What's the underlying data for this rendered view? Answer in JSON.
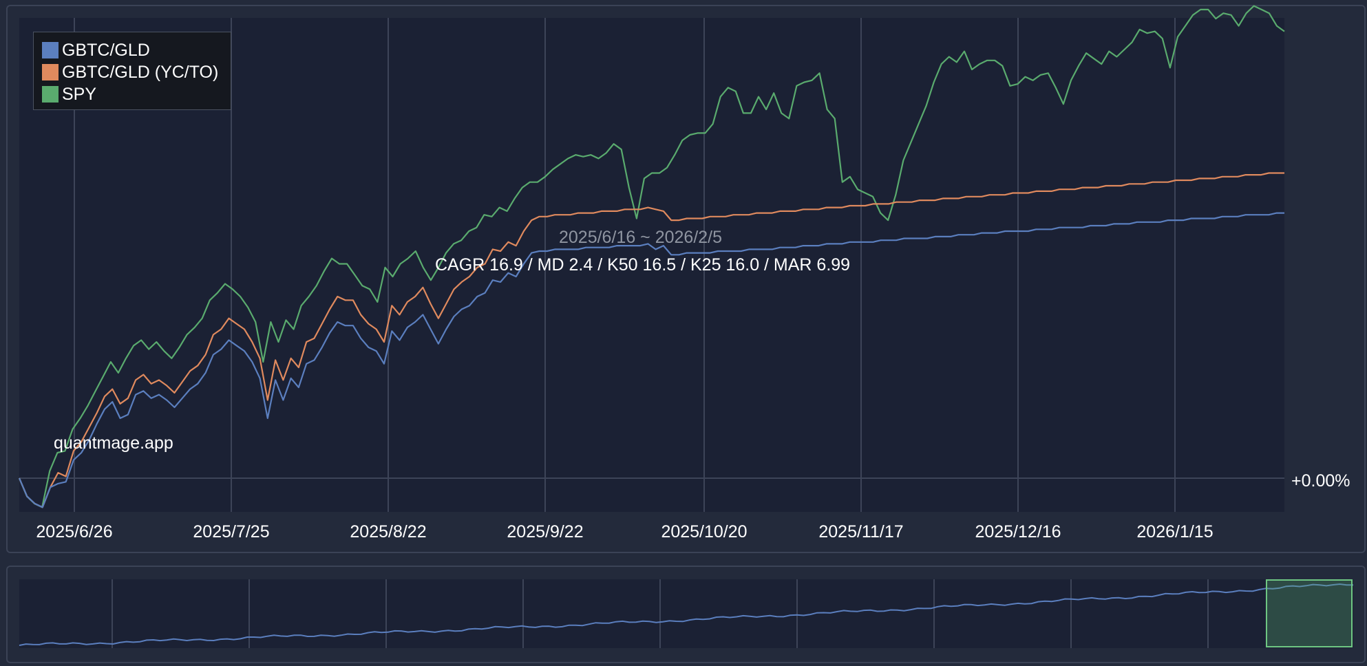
{
  "chart_data": {
    "type": "line",
    "period_label": "2025/6/16 ~ 2026/2/5",
    "stats_label": "CAGR 16.9 / MD 2.4 / K50 16.5 / K25 16.0 / MAR 6.99",
    "watermark": "quantmage.app",
    "x_ticks": [
      "2025/6/26",
      "2025/7/25",
      "2025/8/22",
      "2025/9/22",
      "2025/10/20",
      "2025/11/17",
      "2025/12/16",
      "2026/1/15"
    ],
    "y_tick_label": "+0.00%",
    "legend_position": "top-left",
    "grid": true,
    "series": [
      {
        "name": "GBTC/GLD",
        "color": "#5b7fbf",
        "values": [
          0.0,
          -1.0,
          -1.4,
          -1.6,
          -0.5,
          -0.3,
          -0.2,
          1.0,
          1.4,
          2.1,
          3.0,
          3.8,
          4.2,
          3.3,
          3.5,
          4.6,
          4.8,
          4.4,
          4.6,
          4.3,
          3.9,
          4.4,
          4.9,
          5.2,
          5.8,
          6.8,
          7.1,
          7.6,
          7.3,
          7.0,
          6.4,
          5.5,
          3.3,
          5.4,
          4.3,
          5.5,
          5.0,
          6.3,
          6.5,
          7.2,
          8.0,
          8.6,
          8.4,
          8.4,
          7.7,
          7.2,
          7.0,
          6.3,
          8.1,
          7.6,
          8.3,
          8.6,
          9.0,
          8.2,
          7.4,
          8.2,
          8.9,
          9.3,
          9.5,
          10.0,
          10.2,
          10.9,
          10.8,
          11.3,
          11.1,
          11.8,
          12.4,
          12.5,
          12.5,
          12.6,
          12.6,
          12.6,
          12.6,
          12.7,
          12.7,
          12.7,
          12.7,
          12.8,
          12.8,
          12.8,
          12.8,
          12.9,
          12.6,
          12.8,
          12.3,
          12.3,
          12.4,
          12.4,
          12.4,
          12.4,
          12.5,
          12.5,
          12.5,
          12.5,
          12.6,
          12.6,
          12.6,
          12.6,
          12.7,
          12.7,
          12.7,
          12.8,
          12.8,
          12.8,
          12.9,
          12.9,
          12.9,
          13.0,
          13.0,
          13.0,
          13.0,
          13.1,
          13.1,
          13.1,
          13.2,
          13.2,
          13.2,
          13.2,
          13.3,
          13.3,
          13.3,
          13.4,
          13.4,
          13.4,
          13.5,
          13.5,
          13.5,
          13.6,
          13.6,
          13.6,
          13.6,
          13.7,
          13.7,
          13.7,
          13.8,
          13.8,
          13.8,
          13.8,
          13.9,
          13.9,
          13.9,
          14.0,
          14.0,
          14.0,
          14.1,
          14.1,
          14.1,
          14.1,
          14.2,
          14.2,
          14.2,
          14.3,
          14.3,
          14.3,
          14.3,
          14.4,
          14.4,
          14.4,
          14.5,
          14.5,
          14.5,
          14.5,
          14.6,
          14.6
        ]
      },
      {
        "name": "GBTC/GLD (YC/TO)",
        "color": "#e08a5e",
        "values": [
          0.0,
          -1.0,
          -1.4,
          -1.6,
          -0.5,
          0.3,
          0.1,
          1.5,
          2.0,
          2.8,
          3.6,
          4.5,
          4.9,
          4.1,
          4.4,
          5.4,
          5.7,
          5.2,
          5.4,
          5.1,
          4.7,
          5.3,
          5.9,
          6.2,
          6.8,
          7.9,
          8.2,
          8.8,
          8.5,
          8.2,
          7.5,
          6.6,
          4.3,
          6.5,
          5.4,
          6.6,
          6.1,
          7.5,
          7.7,
          8.5,
          9.3,
          10.0,
          9.8,
          9.8,
          9.0,
          8.5,
          8.2,
          7.5,
          9.5,
          9.0,
          9.7,
          10.0,
          10.5,
          9.6,
          8.8,
          9.6,
          10.4,
          10.8,
          11.1,
          11.6,
          11.8,
          12.6,
          12.5,
          13.0,
          12.8,
          13.6,
          14.2,
          14.4,
          14.4,
          14.5,
          14.5,
          14.5,
          14.6,
          14.6,
          14.6,
          14.7,
          14.7,
          14.7,
          14.8,
          14.8,
          14.8,
          14.9,
          14.8,
          14.7,
          14.2,
          14.2,
          14.3,
          14.3,
          14.3,
          14.4,
          14.4,
          14.4,
          14.5,
          14.5,
          14.5,
          14.6,
          14.6,
          14.6,
          14.7,
          14.7,
          14.7,
          14.8,
          14.8,
          14.8,
          14.9,
          14.9,
          14.9,
          15.0,
          15.0,
          15.0,
          15.1,
          15.1,
          15.1,
          15.2,
          15.2,
          15.2,
          15.3,
          15.3,
          15.3,
          15.4,
          15.4,
          15.4,
          15.5,
          15.5,
          15.5,
          15.6,
          15.6,
          15.6,
          15.7,
          15.7,
          15.7,
          15.8,
          15.8,
          15.8,
          15.9,
          15.9,
          15.9,
          16.0,
          16.0,
          16.0,
          16.1,
          16.1,
          16.1,
          16.2,
          16.2,
          16.2,
          16.3,
          16.3,
          16.3,
          16.4,
          16.4,
          16.4,
          16.5,
          16.5,
          16.5,
          16.6,
          16.6,
          16.6,
          16.7,
          16.7,
          16.7,
          16.8,
          16.8,
          16.8
        ]
      },
      {
        "name": "SPY",
        "color": "#5aab6e",
        "values": [
          0.0,
          -1.0,
          -1.4,
          -1.6,
          0.4,
          1.4,
          1.5,
          2.7,
          3.3,
          4.0,
          4.8,
          5.6,
          6.4,
          5.8,
          6.6,
          7.3,
          7.6,
          7.1,
          7.5,
          7.0,
          6.6,
          7.2,
          7.9,
          8.3,
          8.8,
          9.8,
          10.2,
          10.7,
          10.4,
          10.0,
          9.4,
          8.6,
          6.4,
          8.6,
          7.5,
          8.7,
          8.2,
          9.5,
          10.0,
          10.6,
          11.4,
          12.1,
          11.8,
          11.8,
          11.2,
          10.6,
          10.4,
          9.7,
          11.6,
          11.1,
          11.8,
          12.1,
          12.5,
          11.6,
          10.9,
          11.6,
          12.4,
          12.9,
          13.1,
          13.6,
          13.8,
          14.5,
          14.4,
          14.9,
          14.7,
          15.4,
          16.0,
          16.3,
          16.3,
          16.6,
          17.0,
          17.3,
          17.6,
          17.8,
          17.7,
          17.8,
          17.6,
          17.9,
          18.4,
          18.1,
          16.0,
          14.3,
          16.5,
          16.8,
          16.8,
          17.1,
          17.8,
          18.6,
          18.9,
          19.0,
          19.0,
          19.5,
          21.0,
          21.5,
          21.3,
          20.1,
          20.1,
          21.0,
          20.3,
          21.2,
          20.1,
          19.8,
          21.6,
          21.8,
          21.9,
          22.3,
          20.3,
          19.8,
          16.3,
          16.6,
          15.9,
          15.7,
          15.5,
          14.6,
          14.2,
          15.6,
          17.5,
          18.5,
          19.5,
          20.5,
          21.8,
          22.8,
          23.2,
          22.9,
          23.5,
          22.5,
          22.8,
          23.0,
          23.0,
          22.7,
          21.6,
          21.7,
          22.1,
          21.9,
          22.2,
          22.3,
          21.5,
          20.6,
          21.9,
          22.7,
          23.4,
          23.1,
          22.8,
          23.5,
          23.2,
          23.6,
          24.0,
          24.7,
          24.5,
          24.6,
          24.2,
          22.6,
          24.3,
          24.9,
          25.5,
          25.8,
          25.8,
          25.3,
          25.6,
          25.5,
          24.9,
          25.6,
          26.0,
          25.8,
          25.6,
          24.9,
          24.6
        ]
      }
    ],
    "navigator": {
      "x_ticks_count": 9
    }
  }
}
